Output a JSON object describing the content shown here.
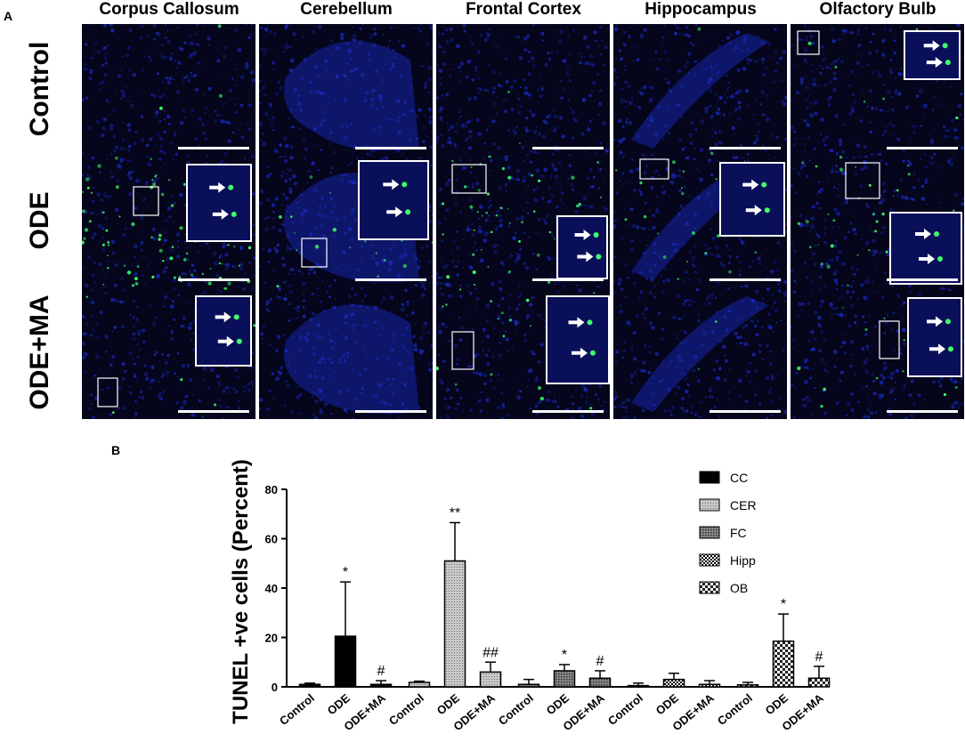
{
  "figure": {
    "panel_a_label": "A",
    "panel_b_label": "B",
    "columns": [
      "Corpus Callosum",
      "Cerebellum",
      "Frontal Cortex",
      "Hippocampus",
      "Olfactory Bulb"
    ],
    "rows": [
      "Control",
      "ODE",
      "ODE+MA"
    ]
  },
  "colors": {
    "nuclei_blue": "#1a2cc8",
    "tunel_green": "#3dff6a",
    "background": "#05051c"
  },
  "chart_data": {
    "type": "bar",
    "ylabel": "TUNEL +ve cells (Percent)",
    "ylim": [
      0,
      80
    ],
    "yticks": [
      0,
      20,
      40,
      60,
      80
    ],
    "groups": [
      {
        "name": "CC",
        "categories": [
          "Control",
          "ODE",
          "ODE+MA"
        ],
        "values": [
          1.0,
          20.5,
          1.0
        ],
        "errors": [
          0.5,
          22.0,
          1.5
        ],
        "marks": [
          "",
          "*",
          "#"
        ]
      },
      {
        "name": "CER",
        "categories": [
          "Control",
          "ODE",
          "ODE+MA"
        ],
        "values": [
          1.8,
          51.0,
          6.0
        ],
        "errors": [
          0.5,
          15.5,
          4.0
        ],
        "marks": [
          "",
          "**",
          "##"
        ]
      },
      {
        "name": "FC",
        "categories": [
          "Control",
          "ODE",
          "ODE+MA"
        ],
        "values": [
          1.0,
          6.5,
          3.5
        ],
        "errors": [
          2.0,
          2.5,
          3.0
        ],
        "marks": [
          "",
          "*",
          "#"
        ]
      },
      {
        "name": "Hipp",
        "categories": [
          "Control",
          "ODE",
          "ODE+MA"
        ],
        "values": [
          0.5,
          3.0,
          1.0
        ],
        "errors": [
          1.0,
          2.5,
          1.5
        ],
        "marks": [
          "",
          "",
          ""
        ]
      },
      {
        "name": "OB",
        "categories": [
          "Control",
          "ODE",
          "ODE+MA"
        ],
        "values": [
          0.8,
          18.5,
          3.5
        ],
        "errors": [
          1.0,
          11.0,
          4.8
        ],
        "marks": [
          "",
          "*",
          "#"
        ]
      }
    ],
    "legend": [
      "CC",
      "CER",
      "FC",
      "Hipp",
      "OB"
    ],
    "legend_position": "top-right"
  }
}
